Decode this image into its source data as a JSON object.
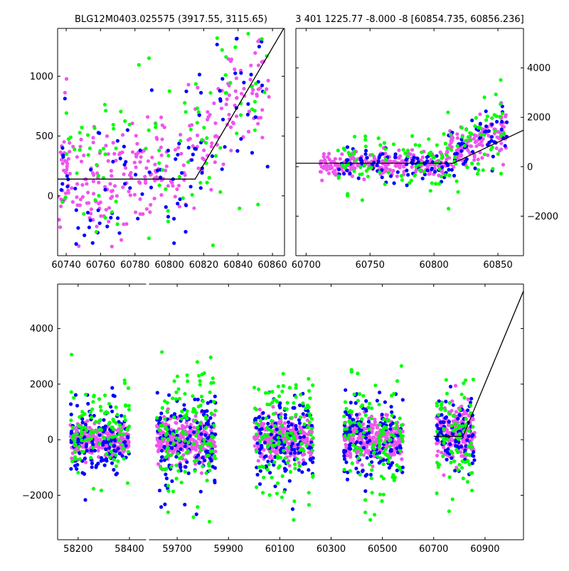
{
  "colors": {
    "background": "#ffffff",
    "axis": "#000000",
    "blue": "#0000ff",
    "green": "#00ff00",
    "magenta": "#ee55ee",
    "model": "#000000"
  },
  "chart_data": [
    {
      "type": "scatter",
      "title": "BLG12M0403.025575 (3917.55, 3115.65)",
      "xlim": [
        60735,
        60867
      ],
      "ylim": [
        -500,
        1400
      ],
      "xticks": [
        60740,
        60760,
        60780,
        60800,
        60820,
        60840,
        60860
      ],
      "yticks": [
        0,
        500,
        1000
      ],
      "ytick_side": "left",
      "grid": false,
      "series": [
        {
          "color": "magenta",
          "seed": 11,
          "clusters": [
            {
              "x": [
                60735,
                60810
              ],
              "n": 190,
              "y_mean": 160,
              "y_sd": 230
            },
            {
              "x": [
                60810,
                60858
              ],
              "n": 90,
              "y_mean": 420,
              "y_sd": 250,
              "trend": 12
            }
          ]
        },
        {
          "color": "blue",
          "seed": 23,
          "clusters": [
            {
              "x": [
                60735,
                60810
              ],
              "n": 70,
              "y_mean": 150,
              "y_sd": 320
            },
            {
              "x": [
                60810,
                60858
              ],
              "n": 45,
              "y_mean": 420,
              "y_sd": 330,
              "trend": 12
            }
          ]
        },
        {
          "color": "green",
          "seed": 37,
          "clusters": [
            {
              "x": [
                60735,
                60810
              ],
              "n": 60,
              "y_mean": 180,
              "y_sd": 400
            },
            {
              "x": [
                60810,
                60858
              ],
              "n": 45,
              "y_mean": 450,
              "y_sd": 420,
              "trend": 12
            }
          ]
        }
      ],
      "model": {
        "x": [
          60735,
          60808,
          60815,
          60867
        ],
        "y": [
          140,
          140,
          140,
          1410
        ]
      }
    },
    {
      "type": "scatter",
      "title": "3 401 1225.77 -8.000 -8 [60854.735, 60856.236]",
      "xlim": [
        60692,
        60870
      ],
      "ylim": [
        -3600,
        5600
      ],
      "xticks": [
        60700,
        60750,
        60800,
        60850
      ],
      "yticks": [
        -2000,
        0,
        2000,
        4000
      ],
      "ytick_side": "right",
      "grid": false,
      "series": [
        {
          "color": "magenta",
          "seed": 41,
          "clusters": [
            {
              "x": [
                60710,
                60810
              ],
              "n": 240,
              "y_mean": 100,
              "y_sd": 260
            },
            {
              "x": [
                60810,
                60857
              ],
              "n": 130,
              "y_mean": 550,
              "y_sd": 420,
              "trend": 20
            }
          ]
        },
        {
          "color": "blue",
          "seed": 53,
          "clusters": [
            {
              "x": [
                60725,
                60810
              ],
              "n": 80,
              "y_mean": 100,
              "y_sd": 320
            },
            {
              "x": [
                60810,
                60857
              ],
              "n": 55,
              "y_mean": 550,
              "y_sd": 500,
              "trend": 20
            }
          ]
        },
        {
          "color": "green",
          "seed": 67,
          "clusters": [
            {
              "x": [
                60725,
                60810
              ],
              "n": 80,
              "y_mean": 150,
              "y_sd": 650
            },
            {
              "x": [
                60810,
                60857
              ],
              "n": 55,
              "y_mean": 600,
              "y_sd": 800,
              "trend": 20
            }
          ]
        }
      ],
      "model": {
        "x": [
          60692,
          60808,
          60815,
          60870
        ],
        "y": [
          140,
          140,
          140,
          1480
        ]
      }
    },
    {
      "type": "scatter",
      "title": "",
      "xlim": [
        58120,
        61050
      ],
      "ylim": [
        -3600,
        5600
      ],
      "xticks": [
        58200,
        58400,
        59700,
        59900,
        60100,
        60300,
        60500,
        60700,
        60900
      ],
      "x_break": {
        "segments": [
          [
            58120,
            58465
          ],
          [
            59590,
            61050
          ]
        ],
        "note": "broken x axis"
      },
      "yticks": [
        -2000,
        0,
        2000,
        4000
      ],
      "ytick_side": "left",
      "grid": false,
      "series": [
        {
          "color": "magenta",
          "seed": 71,
          "clusters": [
            {
              "x": [
                58170,
                58400
              ],
              "n": 260,
              "y_mean": 0,
              "y_sd": 300
            },
            {
              "x": [
                59620,
                59850
              ],
              "n": 300,
              "y_mean": 0,
              "y_sd": 380
            },
            {
              "x": [
                60000,
                60230
              ],
              "n": 300,
              "y_mean": 50,
              "y_sd": 380
            },
            {
              "x": [
                60350,
                60580
              ],
              "n": 280,
              "y_mean": 50,
              "y_sd": 380
            },
            {
              "x": [
                60710,
                60860
              ],
              "n": 200,
              "y_mean": 250,
              "y_sd": 450
            }
          ]
        },
        {
          "color": "blue",
          "seed": 83,
          "clusters": [
            {
              "x": [
                58170,
                58400
              ],
              "n": 130,
              "y_mean": 0,
              "y_sd": 650
            },
            {
              "x": [
                59620,
                59850
              ],
              "n": 140,
              "y_mean": 0,
              "y_sd": 900
            },
            {
              "x": [
                60000,
                60230
              ],
              "n": 130,
              "y_mean": 0,
              "y_sd": 850
            },
            {
              "x": [
                60350,
                60580
              ],
              "n": 130,
              "y_mean": 0,
              "y_sd": 850
            },
            {
              "x": [
                60710,
                60860
              ],
              "n": 90,
              "y_mean": 150,
              "y_sd": 700
            }
          ]
        },
        {
          "color": "green",
          "seed": 97,
          "clusters": [
            {
              "x": [
                58170,
                58400
              ],
              "n": 110,
              "y_mean": 150,
              "y_sd": 950
            },
            {
              "x": [
                59620,
                59850
              ],
              "n": 130,
              "y_mean": 150,
              "y_sd": 1300
            },
            {
              "x": [
                60000,
                60230
              ],
              "n": 130,
              "y_mean": 200,
              "y_sd": 1200
            },
            {
              "x": [
                60350,
                60580
              ],
              "n": 120,
              "y_mean": 200,
              "y_sd": 1200
            },
            {
              "x": [
                60710,
                60860
              ],
              "n": 80,
              "y_mean": 300,
              "y_sd": 1100
            }
          ]
        }
      ],
      "model": {
        "x": [
          60700,
          60808,
          60815,
          61050
        ],
        "y": [
          120,
          120,
          140,
          5350
        ]
      }
    }
  ]
}
